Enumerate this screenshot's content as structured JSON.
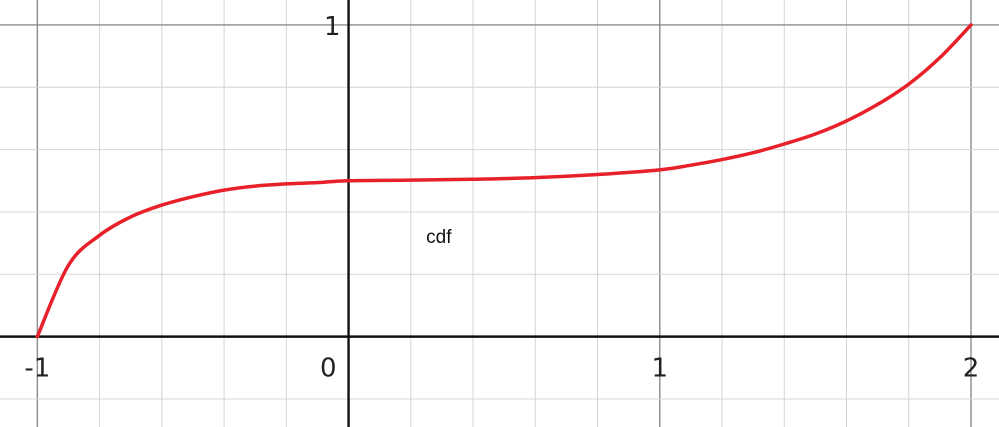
{
  "chart_data": {
    "type": "line",
    "title": "",
    "xlabel": "",
    "ylabel": "",
    "xlim": [
      -1.12,
      2.09
    ],
    "ylim": [
      -0.29,
      1.08
    ],
    "grid": true,
    "minor_grid_step": 0.2,
    "major_grid_step": 1,
    "x_tick_labels": [
      "-1",
      "0",
      "1",
      "2"
    ],
    "x_tick_values": [
      -1,
      0,
      1,
      2
    ],
    "y_tick_labels": [
      "1"
    ],
    "y_tick_values": [
      1
    ],
    "annotations": [
      {
        "text": "cdf",
        "x": 0.29,
        "y": 0.3
      }
    ],
    "series": [
      {
        "color": "#e8202a",
        "x": [
          -1,
          -0.9,
          -0.8,
          -0.7,
          -0.6,
          -0.5,
          -0.4,
          -0.3,
          -0.2,
          -0.1,
          0,
          0.2,
          0.4,
          0.6,
          0.8,
          1,
          1.1,
          1.2,
          1.3,
          1.4,
          1.5,
          1.6,
          1.7,
          1.8,
          1.9,
          2
        ],
        "y": [
          0,
          0.229,
          0.325,
          0.384,
          0.422,
          0.449,
          0.47,
          0.483,
          0.49,
          0.494,
          0.5,
          0.502,
          0.505,
          0.51,
          0.52,
          0.535,
          0.55,
          0.568,
          0.59,
          0.618,
          0.65,
          0.692,
          0.745,
          0.81,
          0.895,
          1
        ]
      }
    ]
  }
}
